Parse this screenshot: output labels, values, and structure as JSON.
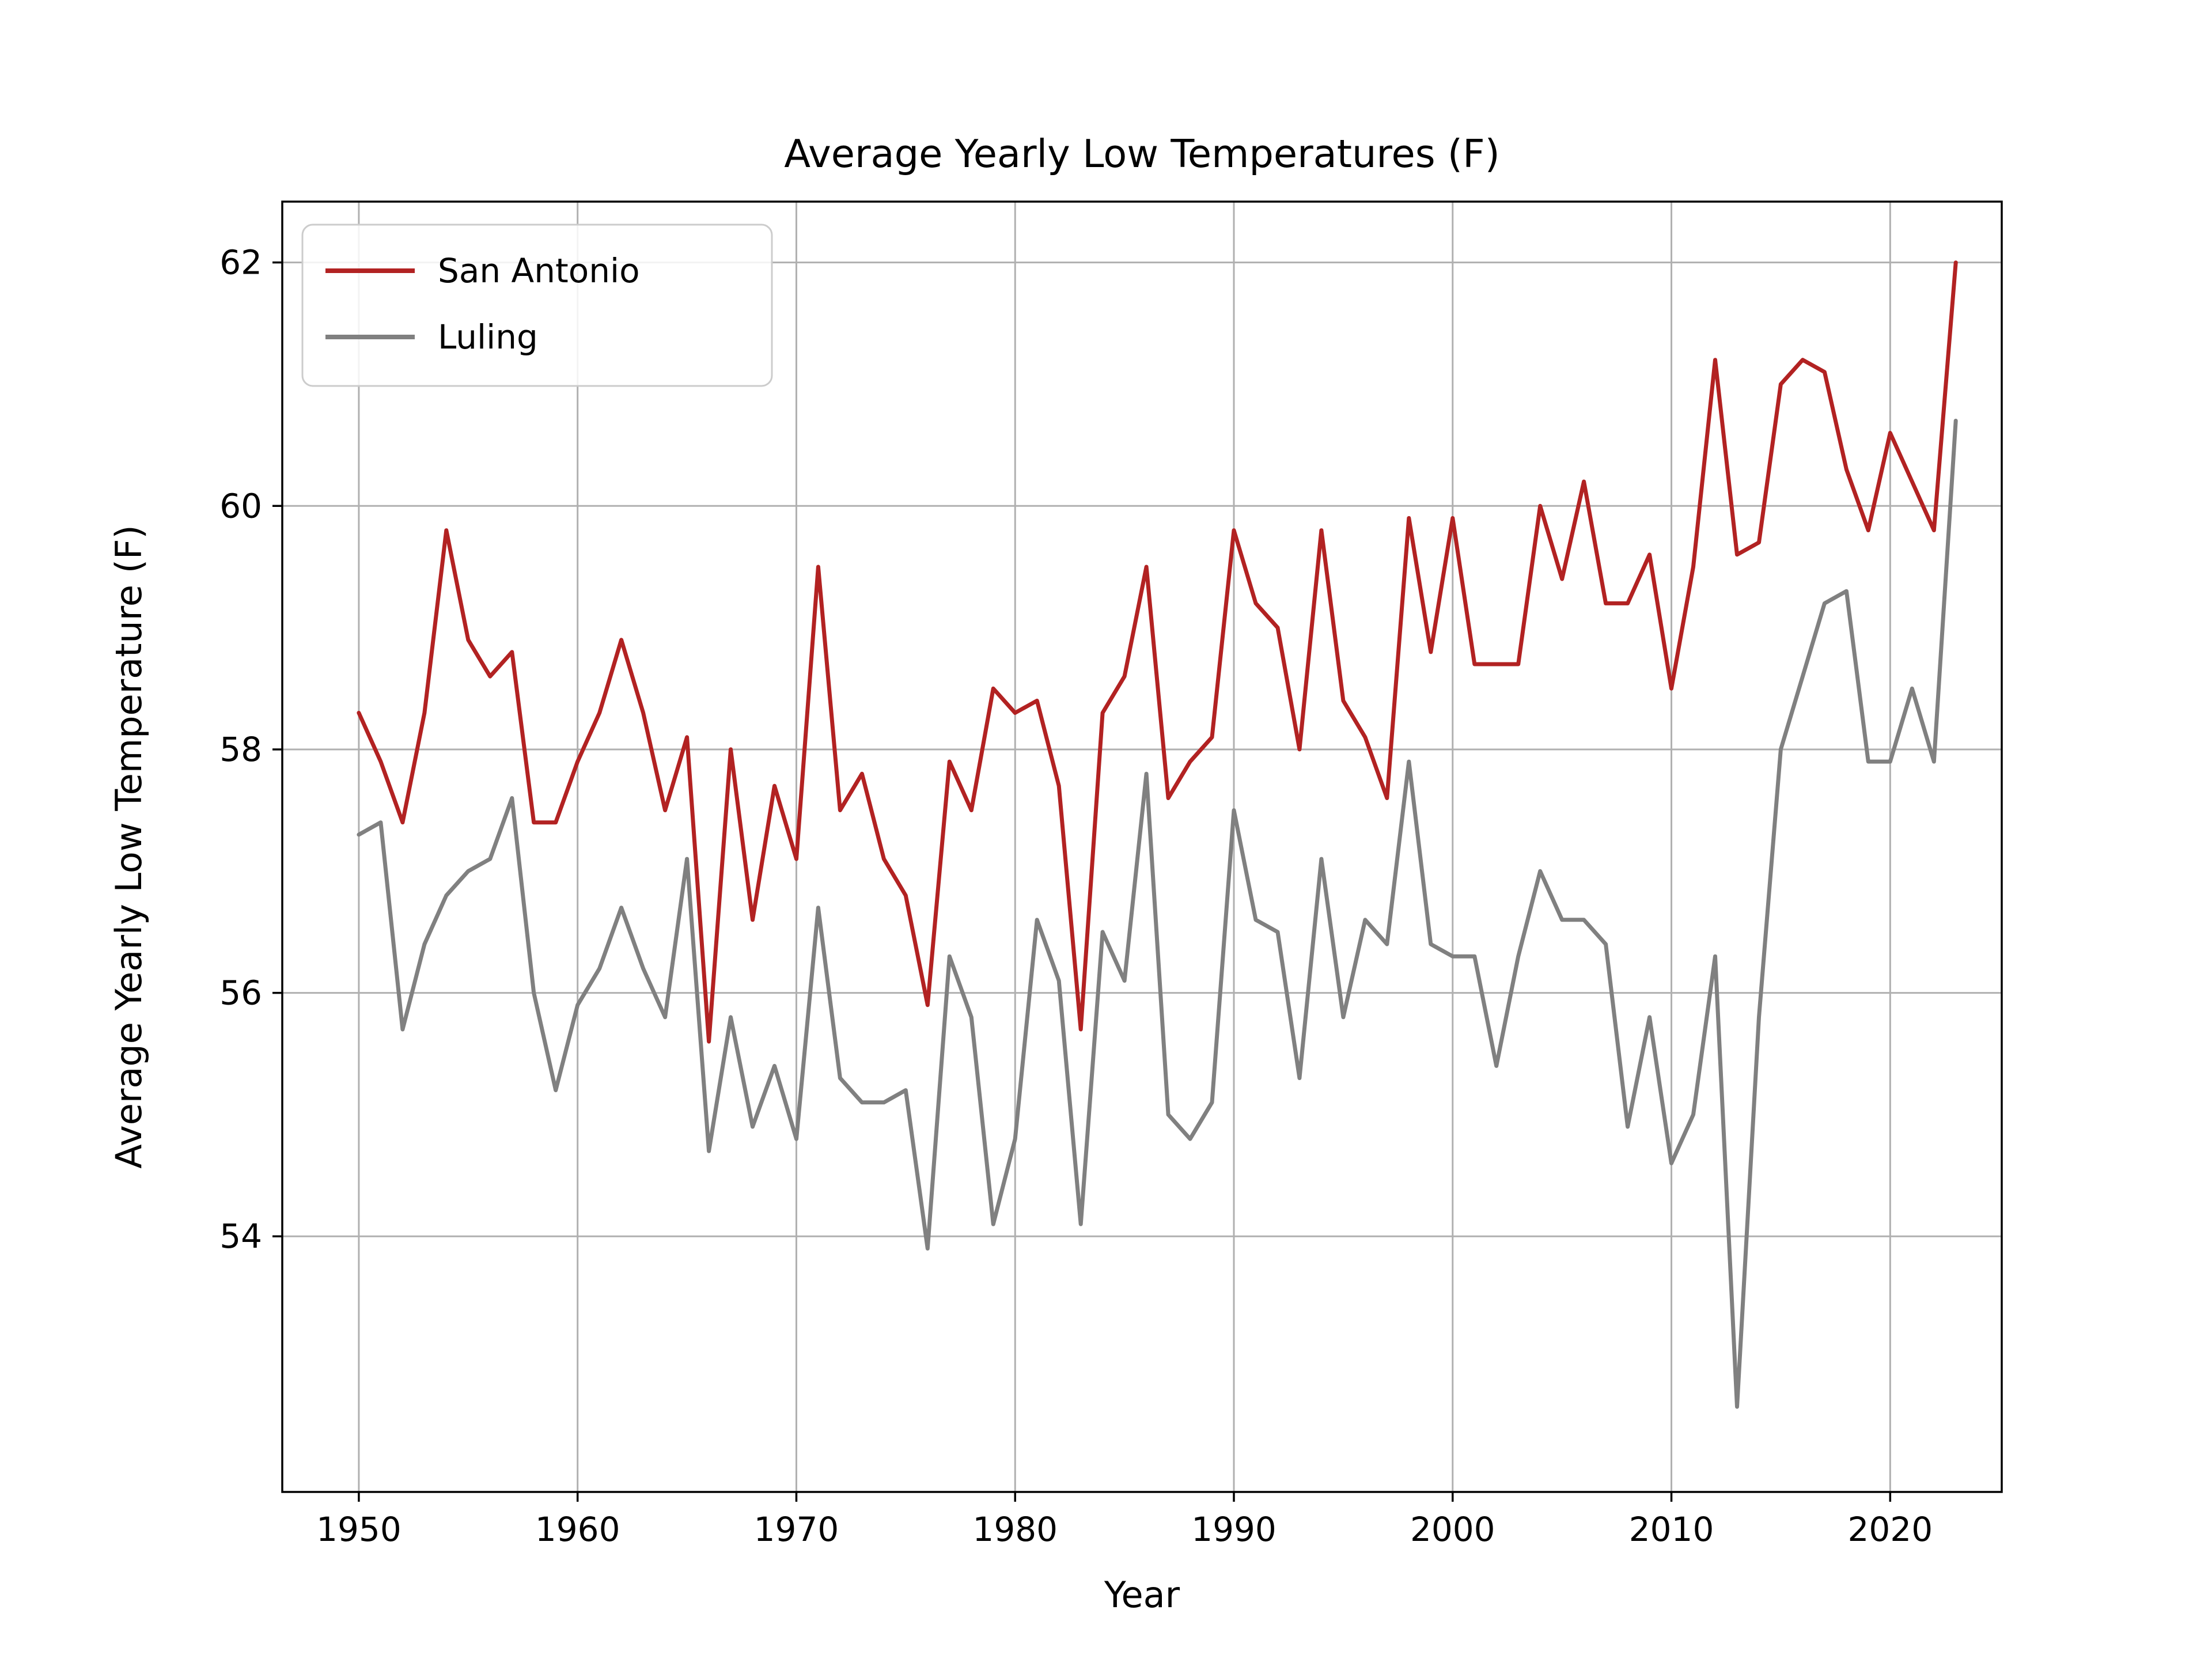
{
  "chart_data": {
    "type": "line",
    "title": "Average Yearly Low Temperatures (F)",
    "xlabel": "Year",
    "ylabel": "Average Yearly Low Temperature (F)",
    "xlim": [
      1946.5,
      2025.1
    ],
    "ylim": [
      51.9,
      62.5
    ],
    "xticks": [
      1950,
      1960,
      1970,
      1980,
      1990,
      2000,
      2010,
      2020
    ],
    "yticks": [
      54,
      56,
      58,
      60,
      62
    ],
    "grid": true,
    "legend_position": "upper left",
    "x": [
      1950,
      1951,
      1952,
      1953,
      1954,
      1955,
      1956,
      1957,
      1958,
      1959,
      1960,
      1961,
      1962,
      1963,
      1964,
      1965,
      1966,
      1967,
      1968,
      1969,
      1970,
      1971,
      1972,
      1973,
      1974,
      1975,
      1976,
      1977,
      1978,
      1979,
      1980,
      1981,
      1982,
      1983,
      1984,
      1985,
      1986,
      1987,
      1988,
      1989,
      1990,
      1991,
      1992,
      1993,
      1994,
      1995,
      1996,
      1997,
      1998,
      1999,
      2000,
      2001,
      2002,
      2003,
      2004,
      2005,
      2006,
      2007,
      2008,
      2009,
      2010,
      2011,
      2012,
      2013,
      2014,
      2015,
      2016,
      2017,
      2018,
      2019,
      2020,
      2021,
      2022,
      2023
    ],
    "series": [
      {
        "name": "San Antonio",
        "color": "#b22222",
        "values": [
          58.3,
          57.9,
          57.4,
          58.3,
          59.8,
          58.9,
          58.6,
          58.8,
          57.4,
          57.4,
          57.9,
          58.3,
          58.9,
          58.3,
          57.5,
          58.1,
          55.6,
          58.0,
          56.6,
          57.7,
          57.1,
          59.5,
          57.5,
          57.8,
          57.1,
          56.8,
          55.9,
          57.9,
          57.5,
          58.5,
          58.3,
          58.4,
          57.7,
          55.7,
          58.3,
          58.6,
          59.5,
          57.6,
          57.9,
          58.1,
          59.8,
          59.2,
          59.0,
          58.0,
          59.8,
          58.4,
          58.1,
          57.6,
          59.9,
          58.8,
          59.9,
          58.7,
          58.7,
          58.7,
          60.0,
          59.4,
          60.2,
          59.2,
          59.2,
          59.6,
          58.5,
          59.5,
          61.2,
          59.6,
          59.7,
          61.0,
          61.2,
          61.1,
          60.3,
          59.8,
          60.6,
          60.2,
          59.8,
          62.0
        ]
      },
      {
        "name": "Luling",
        "color": "#808080",
        "values": [
          57.3,
          57.4,
          55.7,
          56.4,
          56.8,
          57.0,
          57.1,
          57.6,
          56.0,
          55.2,
          55.9,
          56.2,
          56.7,
          56.2,
          55.8,
          57.1,
          54.7,
          55.8,
          54.9,
          55.4,
          54.8,
          56.7,
          55.3,
          55.1,
          55.1,
          55.2,
          53.9,
          56.3,
          55.8,
          54.1,
          54.8,
          56.6,
          56.1,
          54.1,
          56.5,
          56.1,
          57.8,
          55.0,
          54.8,
          55.1,
          57.5,
          56.6,
          56.5,
          55.3,
          57.1,
          55.8,
          56.6,
          56.4,
          57.9,
          56.4,
          56.3,
          56.3,
          55.4,
          56.3,
          57.0,
          56.6,
          56.6,
          56.4,
          54.9,
          55.8,
          54.6,
          55.0,
          56.3,
          52.6,
          55.8,
          58.0,
          58.6,
          59.2,
          59.3,
          57.9,
          57.9,
          58.5,
          57.9,
          60.7
        ]
      }
    ]
  },
  "style": {
    "grid_color": "#b0b0b0",
    "frame_color": "#000000",
    "text_color": "#000000",
    "legend_border_color": "#cccccc",
    "background": "#ffffff"
  }
}
